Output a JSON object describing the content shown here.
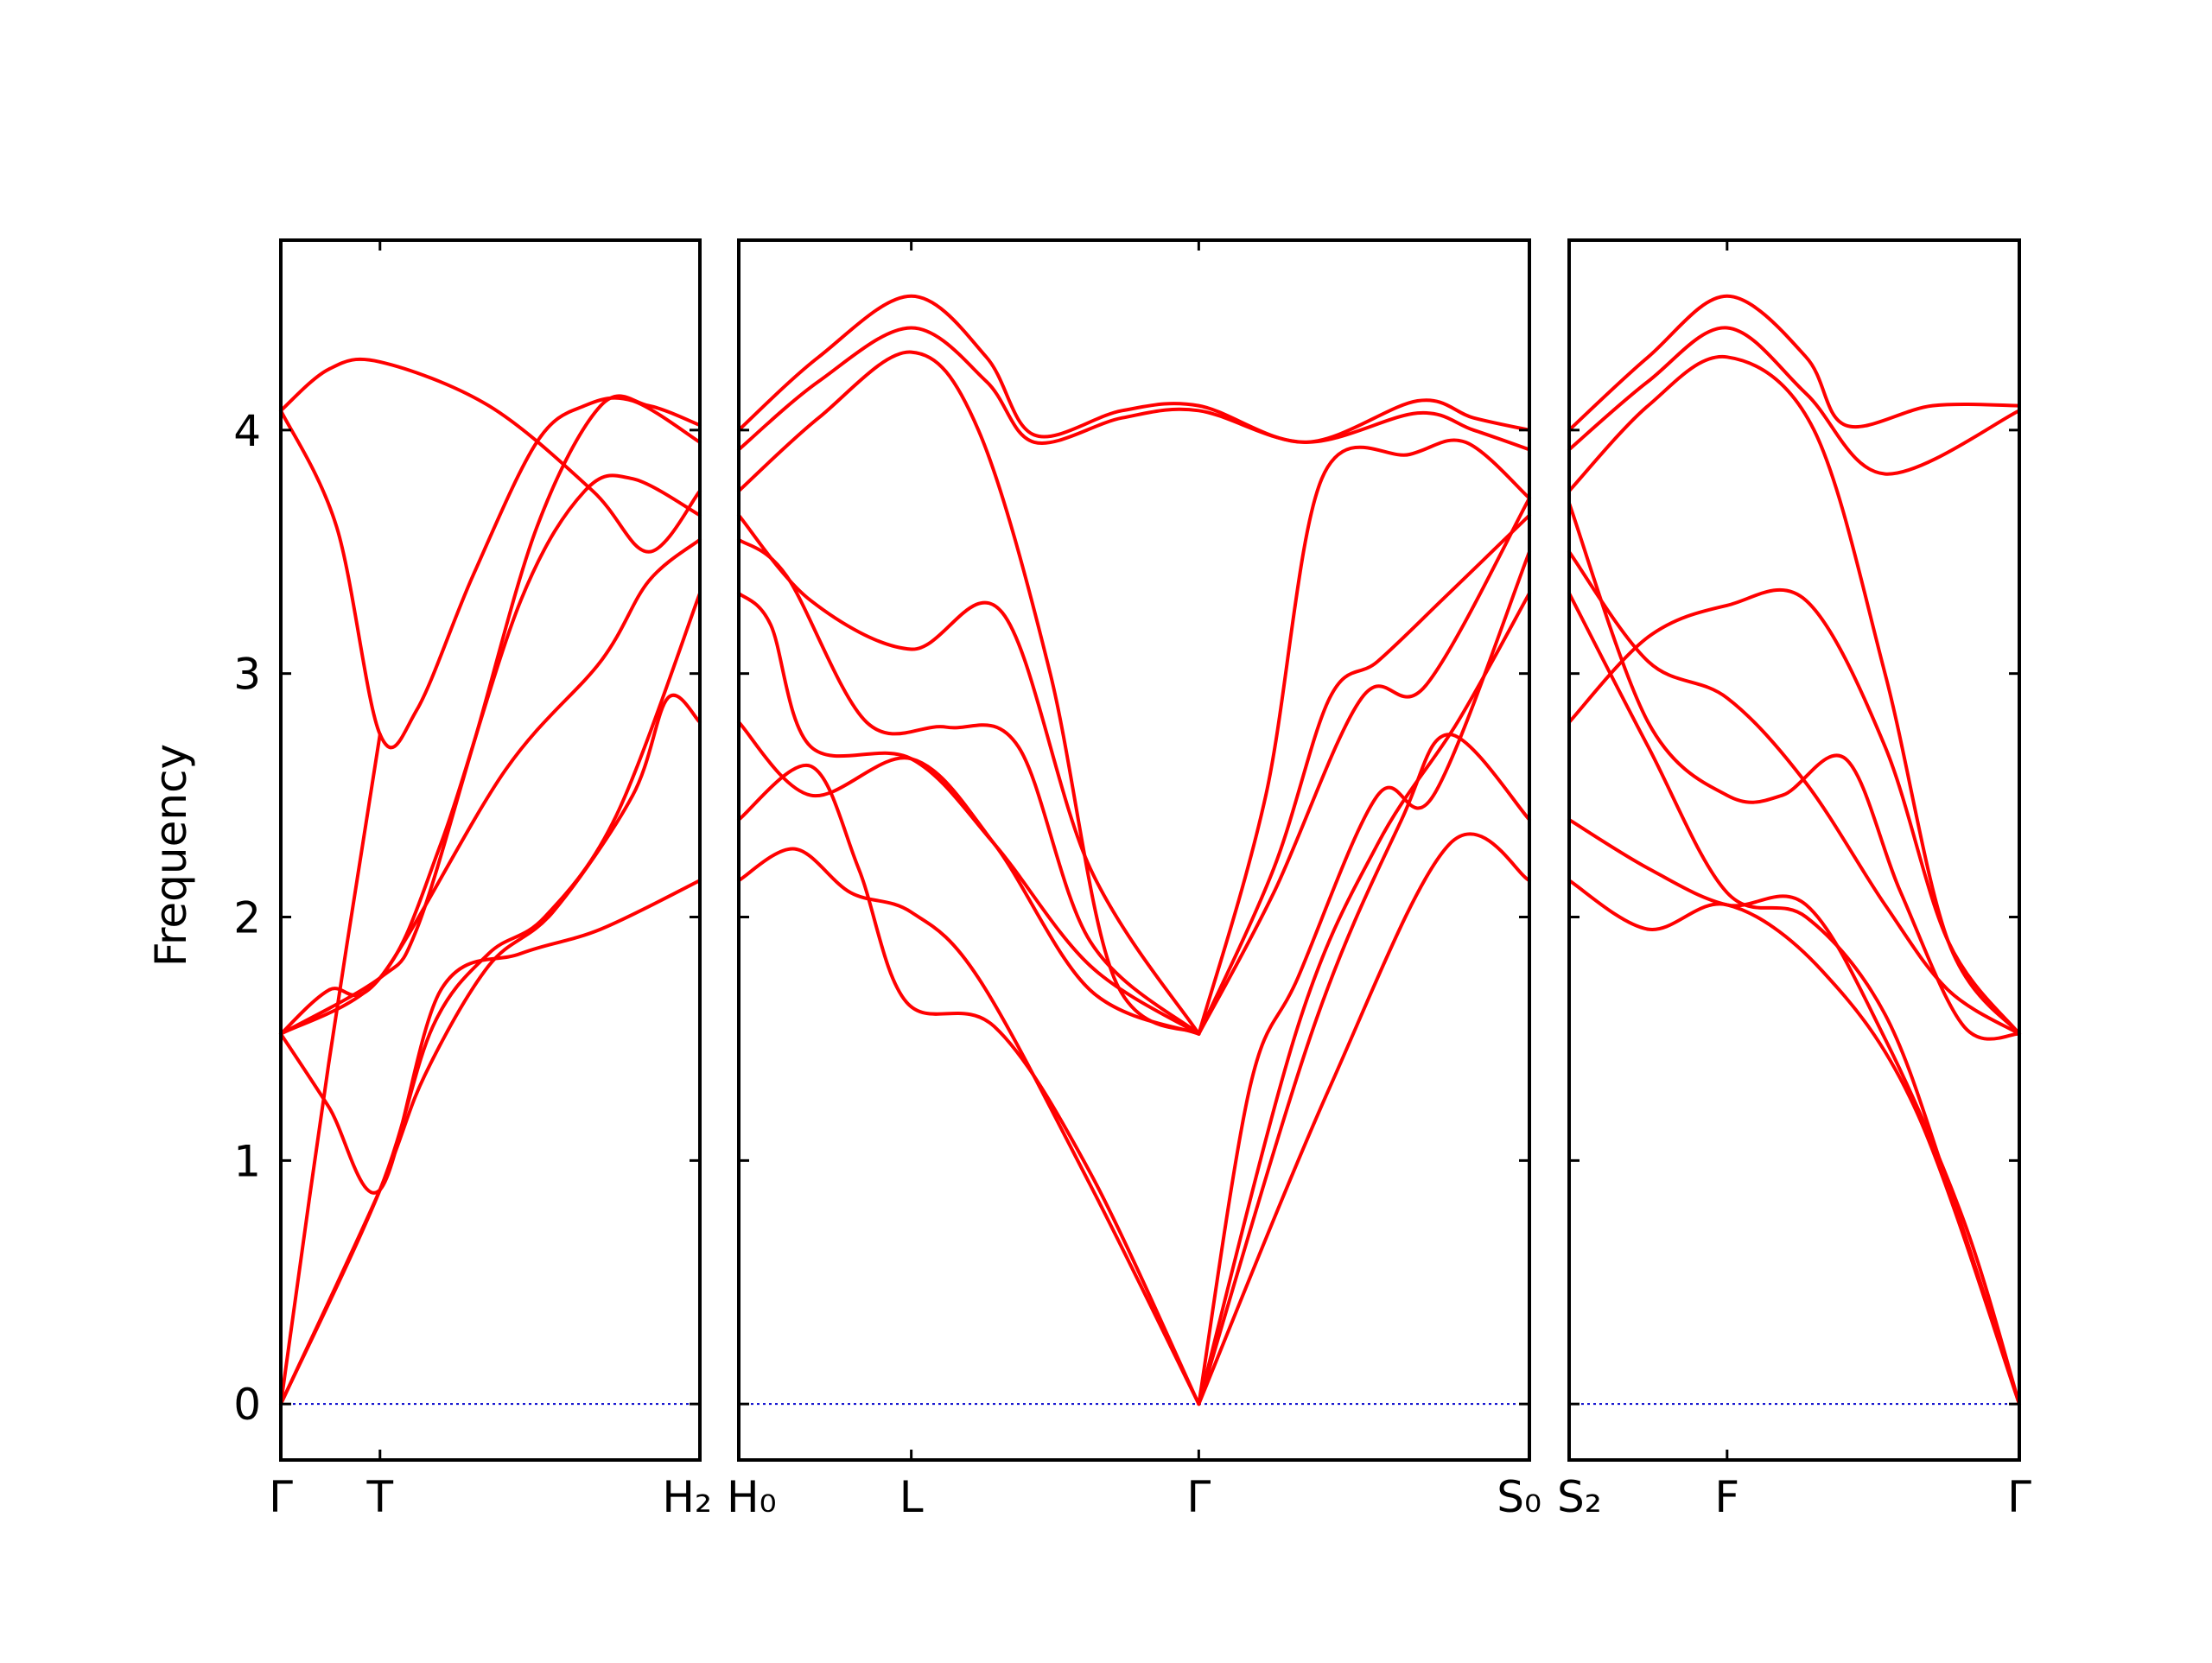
{
  "chart_data": {
    "type": "line",
    "title": "",
    "xlabel": "",
    "ylabel": "Frequency",
    "ylim": [
      -0.23,
      4.78
    ],
    "yticks": [
      0,
      1,
      2,
      3,
      4
    ],
    "grid": false,
    "legend": "none",
    "colors": {
      "bands": "#ff0000",
      "zero_line": "#0000cc",
      "axes": "#000000"
    },
    "panels": [
      {
        "xlim": [
          0,
          2.62
        ],
        "ticks": [
          {
            "x": 0,
            "label": "Γ"
          },
          {
            "x": 0.62,
            "label": "T"
          },
          {
            "x": 2.62,
            "label": "H₂"
          }
        ],
        "bands": [
          [
            [
              0,
              0
            ],
            [
              0.62,
              0.88
            ],
            [
              0.9,
              1.35
            ],
            [
              1.3,
              1.8
            ],
            [
              1.7,
              2.02
            ],
            [
              2.2,
              2.5
            ],
            [
              2.42,
              2.9
            ],
            [
              2.62,
              2.8
            ]
          ],
          [
            [
              0,
              0
            ],
            [
              0.62,
              0.88
            ],
            [
              0.95,
              1.55
            ],
            [
              1.3,
              1.85
            ],
            [
              1.65,
              2.0
            ],
            [
              2.1,
              2.42
            ],
            [
              2.62,
              3.33
            ]
          ],
          [
            [
              0,
              1.52
            ],
            [
              0.3,
              1.22
            ],
            [
              0.62,
              0.88
            ],
            [
              1.0,
              1.7
            ],
            [
              1.5,
              1.85
            ],
            [
              2.0,
              1.95
            ],
            [
              2.62,
              2.15
            ]
          ],
          [
            [
              0,
              1.52
            ],
            [
              0.3,
              1.7
            ],
            [
              0.62,
              1.75
            ],
            [
              1.4,
              2.6
            ],
            [
              2.0,
              3.05
            ],
            [
              2.3,
              3.38
            ],
            [
              2.62,
              3.55
            ]
          ],
          [
            [
              0,
              4.08
            ],
            [
              0.35,
              3.6
            ],
            [
              0.62,
              2.75
            ],
            [
              0.85,
              2.85
            ],
            [
              1.2,
              3.4
            ],
            [
              1.6,
              3.95
            ],
            [
              1.9,
              4.1
            ],
            [
              2.2,
              4.12
            ],
            [
              2.62,
              3.95
            ]
          ],
          [
            [
              0,
              0
            ],
            [
              0.3,
              1.4
            ],
            [
              0.62,
              2.75
            ]
          ],
          [
            [
              0,
              4.08
            ],
            [
              0.3,
              4.25
            ],
            [
              0.62,
              4.28
            ],
            [
              1.3,
              4.1
            ],
            [
              1.95,
              3.75
            ],
            [
              2.3,
              3.5
            ],
            [
              2.62,
              3.75
            ]
          ],
          [
            [
              0,
              1.52
            ],
            [
              0.62,
              1.75
            ],
            [
              1.0,
              2.3
            ],
            [
              1.5,
              3.3
            ],
            [
              1.9,
              3.75
            ],
            [
              2.2,
              3.8
            ],
            [
              2.62,
              3.65
            ]
          ],
          [
            [
              0,
              1.52
            ],
            [
              0.62,
              1.75
            ],
            [
              0.85,
              1.95
            ],
            [
              1.2,
              2.7
            ],
            [
              1.6,
              3.6
            ],
            [
              2.0,
              4.1
            ],
            [
              2.3,
              4.1
            ],
            [
              2.62,
              4.02
            ]
          ]
        ]
      },
      {
        "xlim": [
          0,
          4.95
        ],
        "ticks": [
          {
            "x": 0,
            "label": "H₀"
          },
          {
            "x": 1.08,
            "label": "L"
          },
          {
            "x": 2.88,
            "label": "Γ"
          },
          {
            "x": 4.95,
            "label": "S₀"
          }
        ],
        "bands": [
          [
            [
              0,
              2.15
            ],
            [
              0.35,
              2.28
            ],
            [
              0.7,
              2.1
            ],
            [
              1.08,
              2.02
            ],
            [
              1.5,
              1.75
            ],
            [
              2.2,
              0.9
            ],
            [
              2.88,
              0
            ]
          ],
          [
            [
              0,
              2.4
            ],
            [
              0.45,
              2.62
            ],
            [
              0.75,
              2.2
            ],
            [
              1.05,
              1.65
            ],
            [
              1.6,
              1.55
            ],
            [
              2.2,
              0.95
            ],
            [
              2.88,
              0
            ]
          ],
          [
            [
              0,
              2.8
            ],
            [
              0.45,
              2.5
            ],
            [
              1.08,
              2.65
            ],
            [
              1.6,
              2.3
            ],
            [
              2.2,
              1.7
            ],
            [
              2.88,
              1.52
            ]
          ],
          [
            [
              0,
              3.33
            ],
            [
              0.2,
              3.2
            ],
            [
              0.45,
              2.7
            ],
            [
              1.08,
              2.65
            ],
            [
              1.6,
              2.3
            ],
            [
              2.2,
              1.8
            ],
            [
              2.88,
              1.52
            ]
          ],
          [
            [
              0,
              3.55
            ],
            [
              0.3,
              3.4
            ],
            [
              0.8,
              2.8
            ],
            [
              1.3,
              2.78
            ],
            [
              1.75,
              2.7
            ],
            [
              2.2,
              1.9
            ],
            [
              2.88,
              1.52
            ]
          ],
          [
            [
              0,
              3.65
            ],
            [
              0.45,
              3.3
            ],
            [
              1.08,
              3.1
            ],
            [
              1.65,
              3.25
            ],
            [
              2.2,
              2.2
            ],
            [
              2.88,
              1.52
            ]
          ],
          [
            [
              0,
              3.75
            ],
            [
              0.5,
              4.05
            ],
            [
              1.08,
              4.32
            ],
            [
              1.5,
              4.0
            ],
            [
              1.95,
              3.0
            ],
            [
              2.35,
              1.75
            ],
            [
              2.88,
              1.52
            ]
          ],
          [
            [
              0,
              3.92
            ],
            [
              0.5,
              4.2
            ],
            [
              1.08,
              4.42
            ],
            [
              1.55,
              4.2
            ],
            [
              1.85,
              3.95
            ],
            [
              2.4,
              4.05
            ],
            [
              2.88,
              4.08
            ],
            [
              3.55,
              3.95
            ],
            [
              4.25,
              4.07
            ],
            [
              4.6,
              4.0
            ],
            [
              4.95,
              3.92
            ]
          ],
          [
            [
              0,
              4.0
            ],
            [
              0.5,
              4.3
            ],
            [
              1.08,
              4.55
            ],
            [
              1.55,
              4.3
            ],
            [
              1.85,
              3.98
            ],
            [
              2.4,
              4.08
            ],
            [
              2.88,
              4.1
            ],
            [
              3.55,
              3.95
            ],
            [
              4.25,
              4.12
            ],
            [
              4.6,
              4.05
            ],
            [
              4.95,
              4.0
            ]
          ],
          [
            [
              2.88,
              0
            ],
            [
              3.5,
              1.55
            ],
            [
              4.0,
              2.3
            ],
            [
              4.5,
              2.8
            ],
            [
              4.95,
              3.33
            ]
          ],
          [
            [
              2.88,
              0
            ],
            [
              3.2,
              1.3
            ],
            [
              3.5,
              1.75
            ],
            [
              4.0,
              2.5
            ],
            [
              4.35,
              2.5
            ],
            [
              4.95,
              3.5
            ]
          ],
          [
            [
              2.88,
              0
            ],
            [
              3.6,
              1.55
            ],
            [
              4.15,
              2.4
            ],
            [
              4.45,
              2.75
            ],
            [
              4.95,
              2.4
            ]
          ],
          [
            [
              2.88,
              0
            ],
            [
              3.7,
              1.3
            ],
            [
              4.45,
              2.3
            ],
            [
              4.95,
              2.15
            ]
          ],
          [
            [
              2.88,
              1.52
            ],
            [
              3.35,
              2.1
            ],
            [
              3.9,
              2.9
            ],
            [
              4.3,
              2.95
            ],
            [
              4.95,
              3.72
            ]
          ],
          [
            [
              2.88,
              1.52
            ],
            [
              3.35,
              2.2
            ],
            [
              3.7,
              2.9
            ],
            [
              4.0,
              3.05
            ],
            [
              4.4,
              3.3
            ],
            [
              4.95,
              3.65
            ]
          ],
          [
            [
              2.88,
              1.52
            ],
            [
              3.3,
              2.5
            ],
            [
              3.65,
              3.8
            ],
            [
              4.2,
              3.9
            ],
            [
              4.55,
              3.95
            ],
            [
              4.95,
              3.72
            ]
          ]
        ]
      },
      {
        "xlim": [
          0,
          2.85
        ],
        "ticks": [
          {
            "x": 0,
            "label": "S₂"
          },
          {
            "x": 1.0,
            "label": "F"
          },
          {
            "x": 2.85,
            "label": "Γ"
          }
        ],
        "bands": [
          [
            [
              0,
              2.15
            ],
            [
              0.5,
              1.95
            ],
            [
              1.0,
              2.05
            ],
            [
              1.6,
              1.78
            ],
            [
              2.2,
              1.2
            ],
            [
              2.85,
              0
            ]
          ],
          [
            [
              0,
              2.4
            ],
            [
              0.5,
              2.2
            ],
            [
              1.0,
              2.05
            ],
            [
              1.5,
              2.05
            ],
            [
              2.0,
              1.5
            ],
            [
              2.5,
              0.75
            ],
            [
              2.85,
              0
            ]
          ],
          [
            [
              0,
              2.8
            ],
            [
              0.5,
              3.15
            ],
            [
              1.0,
              3.28
            ],
            [
              1.5,
              3.3
            ],
            [
              2.0,
              2.7
            ],
            [
              2.4,
              1.9
            ],
            [
              2.85,
              1.52
            ]
          ],
          [
            [
              0,
              3.33
            ],
            [
              0.5,
              2.7
            ],
            [
              1.0,
              2.1
            ],
            [
              1.5,
              2.0
            ],
            [
              2.0,
              1.6
            ],
            [
              2.4,
              0.9
            ],
            [
              2.85,
              0
            ]
          ],
          [
            [
              0,
              3.5
            ],
            [
              0.5,
              3.05
            ],
            [
              1.0,
              2.9
            ],
            [
              1.5,
              2.55
            ],
            [
              2.0,
              2.05
            ],
            [
              2.4,
              1.7
            ],
            [
              2.85,
              1.52
            ]
          ],
          [
            [
              0,
              3.7
            ],
            [
              0.5,
              2.8
            ],
            [
              1.0,
              2.5
            ],
            [
              1.35,
              2.5
            ],
            [
              1.75,
              2.65
            ],
            [
              2.1,
              2.1
            ],
            [
              2.5,
              1.55
            ],
            [
              2.85,
              1.52
            ]
          ],
          [
            [
              0,
              3.75
            ],
            [
              0.5,
              4.1
            ],
            [
              1.0,
              4.3
            ],
            [
              1.55,
              4.0
            ],
            [
              2.0,
              3.0
            ],
            [
              2.4,
              1.9
            ],
            [
              2.85,
              1.52
            ]
          ],
          [
            [
              0,
              3.92
            ],
            [
              0.5,
              4.2
            ],
            [
              1.0,
              4.42
            ],
            [
              1.5,
              4.15
            ],
            [
              2.0,
              3.82
            ],
            [
              2.85,
              4.08
            ]
          ],
          [
            [
              0,
              4.0
            ],
            [
              0.5,
              4.3
            ],
            [
              1.0,
              4.55
            ],
            [
              1.5,
              4.3
            ],
            [
              1.75,
              4.02
            ],
            [
              2.3,
              4.1
            ],
            [
              2.85,
              4.1
            ]
          ]
        ]
      }
    ]
  }
}
